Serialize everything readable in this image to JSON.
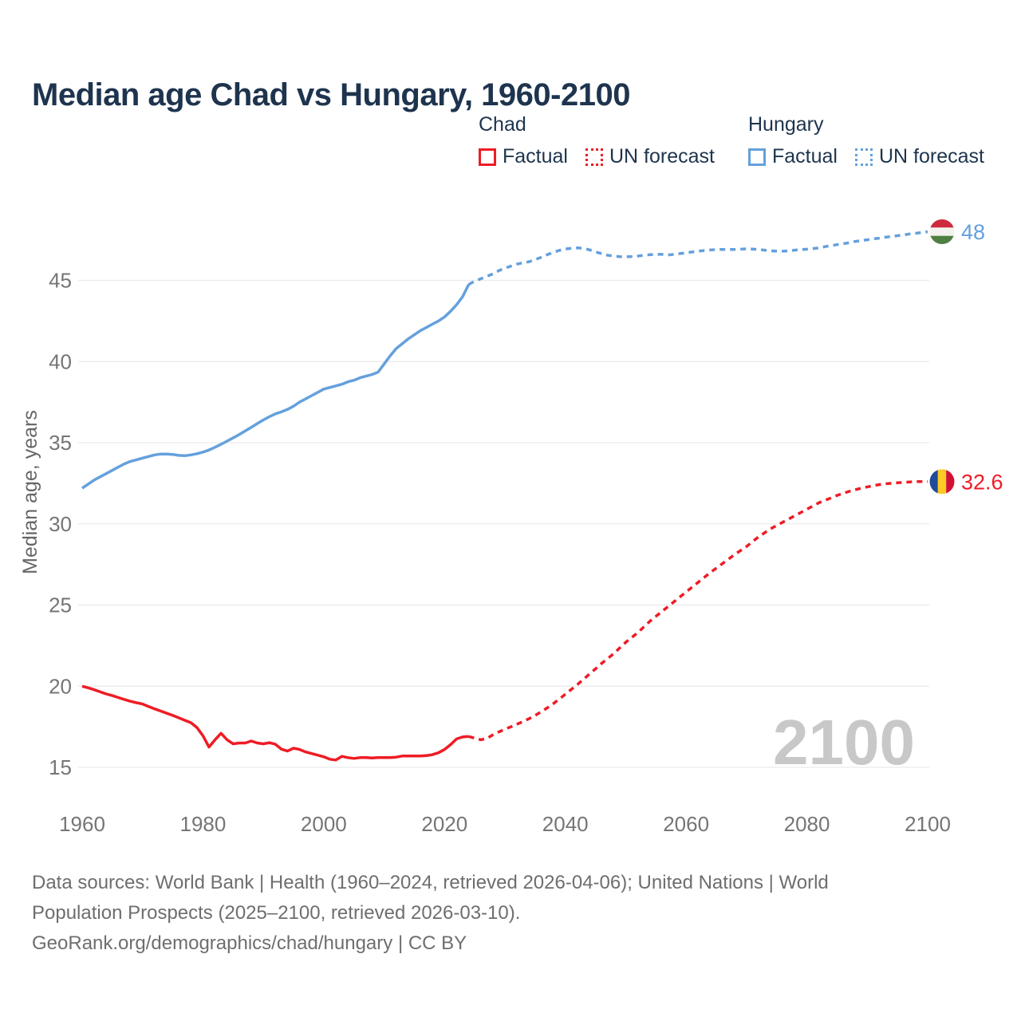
{
  "header": {
    "title": "Median age Chad vs Hungary, 1960-2100"
  },
  "legend": {
    "groups": [
      {
        "name": "Chad",
        "color": "#ee1c25",
        "items": [
          {
            "label": "Factual",
            "style": "solid"
          },
          {
            "label": "UN forecast",
            "style": "dashed"
          }
        ]
      },
      {
        "name": "Hungary",
        "color": "#64a0dc",
        "items": [
          {
            "label": "Factual",
            "style": "solid"
          },
          {
            "label": "UN forecast",
            "style": "dashed"
          }
        ]
      }
    ]
  },
  "icons": {
    "hungary_flag": "hungary-flag-circle-icon",
    "chad_flag": "chad-flag-circle-icon"
  },
  "colors": {
    "chad_red": "#ee1c25",
    "hungary_blue": "#64a0dc",
    "title_navy": "#1e344e",
    "tick_gray": "#757575",
    "gridline": "#eaeaea",
    "watermark_gray": "#c8c8c8",
    "footer_gray": "#6e6e6e"
  },
  "chart_data": {
    "type": "line",
    "title": "Median age Chad vs Hungary, 1960-2100",
    "xlabel": "",
    "ylabel": "Median age, years",
    "watermark": "2100",
    "grid": "horizontal",
    "legend_position": "top-right",
    "xlim": [
      1960,
      2100
    ],
    "ylim": [
      15,
      45
    ],
    "xticks": [
      1960,
      1980,
      2000,
      2020,
      2040,
      2060,
      2080,
      2100
    ],
    "yticks": [
      15,
      20,
      25,
      30,
      35,
      40,
      45
    ],
    "series": [
      {
        "name": "Chad Factual",
        "style": "solid",
        "color": "#ee1c25",
        "start_year": 1960,
        "values": [
          20.0,
          19.9,
          19.78,
          19.65,
          19.52,
          19.42,
          19.3,
          19.18,
          19.07,
          18.98,
          18.9,
          18.75,
          18.6,
          18.47,
          18.33,
          18.2,
          18.05,
          17.9,
          17.75,
          17.45,
          16.95,
          16.25,
          16.7,
          17.1,
          16.7,
          16.45,
          16.5,
          16.5,
          16.62,
          16.5,
          16.45,
          16.52,
          16.42,
          16.12,
          16.0,
          16.18,
          16.1,
          15.95,
          15.85,
          15.75,
          15.65,
          15.5,
          15.45,
          15.68,
          15.6,
          15.55,
          15.6,
          15.6,
          15.58,
          15.6,
          15.6,
          15.6,
          15.63,
          15.7,
          15.7,
          15.7,
          15.7,
          15.72,
          15.78,
          15.9,
          16.1,
          16.4,
          16.75,
          16.87,
          16.9
        ]
      },
      {
        "name": "Chad UN forecast",
        "style": "dashed",
        "color": "#ee1c25",
        "start_year": 2024,
        "values": [
          16.9,
          16.8,
          16.7,
          16.78,
          17.0,
          17.18,
          17.35,
          17.5,
          17.66,
          17.82,
          18.0,
          18.2,
          18.42,
          18.66,
          18.92,
          19.2,
          19.5,
          19.8,
          20.1,
          20.42,
          20.75,
          21.07,
          21.4,
          21.7,
          22.0,
          22.35,
          22.7,
          23.0,
          23.3,
          23.65,
          24.0,
          24.3,
          24.6,
          24.9,
          25.2,
          25.5,
          25.8,
          26.1,
          26.4,
          26.7,
          27.0,
          27.27,
          27.55,
          27.82,
          28.1,
          28.35,
          28.6,
          28.9,
          29.2,
          29.45,
          29.7,
          29.9,
          30.1,
          30.3,
          30.5,
          30.7,
          30.9,
          31.1,
          31.3,
          31.45,
          31.6,
          31.75,
          31.88,
          32.0,
          32.1,
          32.2,
          32.28,
          32.35,
          32.42,
          32.47,
          32.5,
          32.53,
          32.56,
          32.58,
          32.6,
          32.6,
          32.6
        ]
      },
      {
        "name": "Hungary Factual",
        "style": "solid",
        "color": "#64a0dc",
        "start_year": 1960,
        "values": [
          32.2,
          32.45,
          32.7,
          32.9,
          33.1,
          33.3,
          33.5,
          33.7,
          33.85,
          33.95,
          34.05,
          34.15,
          34.25,
          34.3,
          34.3,
          34.28,
          34.22,
          34.2,
          34.25,
          34.32,
          34.42,
          34.55,
          34.72,
          34.9,
          35.1,
          35.3,
          35.5,
          35.72,
          35.95,
          36.18,
          36.4,
          36.6,
          36.78,
          36.9,
          37.05,
          37.25,
          37.5,
          37.7,
          37.9,
          38.1,
          38.3,
          38.4,
          38.5,
          38.6,
          38.75,
          38.85,
          39.0,
          39.1,
          39.2,
          39.35,
          39.85,
          40.35,
          40.8,
          41.1,
          41.4,
          41.65,
          41.9,
          42.1,
          42.3,
          42.5,
          42.75,
          43.1,
          43.5,
          44.0,
          44.75
        ]
      },
      {
        "name": "Hungary UN forecast",
        "style": "dashed",
        "color": "#64a0dc",
        "start_year": 2024,
        "values": [
          44.75,
          44.95,
          45.1,
          45.25,
          45.4,
          45.6,
          45.75,
          45.88,
          46.0,
          46.08,
          46.15,
          46.28,
          46.42,
          46.58,
          46.72,
          46.85,
          46.93,
          46.98,
          47.0,
          46.98,
          46.88,
          46.75,
          46.65,
          46.55,
          46.5,
          46.46,
          46.45,
          46.47,
          46.5,
          46.55,
          46.58,
          46.6,
          46.6,
          46.57,
          46.6,
          46.65,
          46.7,
          46.75,
          46.8,
          46.84,
          46.87,
          46.9,
          46.9,
          46.9,
          46.9,
          46.92,
          46.94,
          46.93,
          46.9,
          46.86,
          46.82,
          46.8,
          46.8,
          46.82,
          46.86,
          46.9,
          46.92,
          46.96,
          47.0,
          47.08,
          47.14,
          47.2,
          47.26,
          47.32,
          47.4,
          47.45,
          47.5,
          47.56,
          47.6,
          47.66,
          47.7,
          47.75,
          47.8,
          47.86,
          47.9,
          47.95,
          48.0
        ]
      }
    ],
    "end_markers": [
      {
        "country": "hungary",
        "label": "48",
        "value": 48,
        "year": 2100,
        "color": "#64a0dc",
        "flag": "hungary-flag-circle-icon"
      },
      {
        "country": "chad",
        "label": "32.6",
        "value": 32.6,
        "year": 2100,
        "color": "#ee1c25",
        "flag": "chad-flag-circle-icon"
      }
    ]
  },
  "footer": {
    "lines": [
      "Data sources: World Bank | Health (1960–2024, retrieved 2026-04-06); United Nations | World",
      "Population Prospects (2025–2100, retrieved 2026-03-10).",
      "GeoRank.org/demographics/chad/hungary | CC BY"
    ]
  }
}
